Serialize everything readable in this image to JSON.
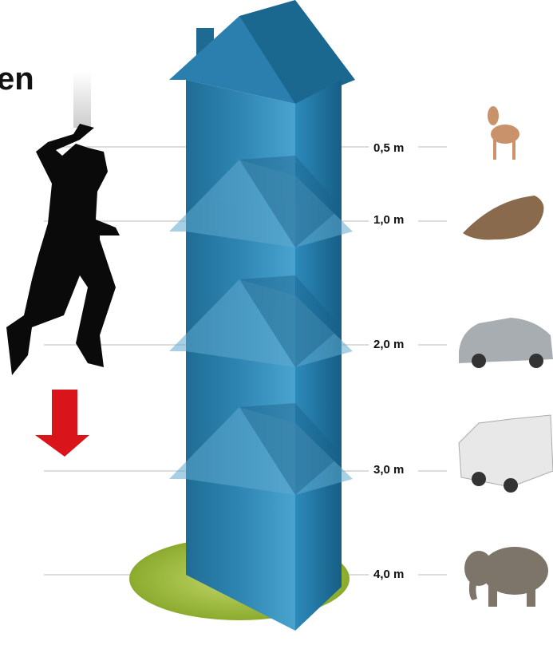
{
  "title_fragment": "en",
  "levels": [
    {
      "label": "0,5 m"
    },
    {
      "label": "1,0 m"
    },
    {
      "label": "2,0 m"
    },
    {
      "label": "3,0 m"
    },
    {
      "label": "4,0 m"
    }
  ]
}
